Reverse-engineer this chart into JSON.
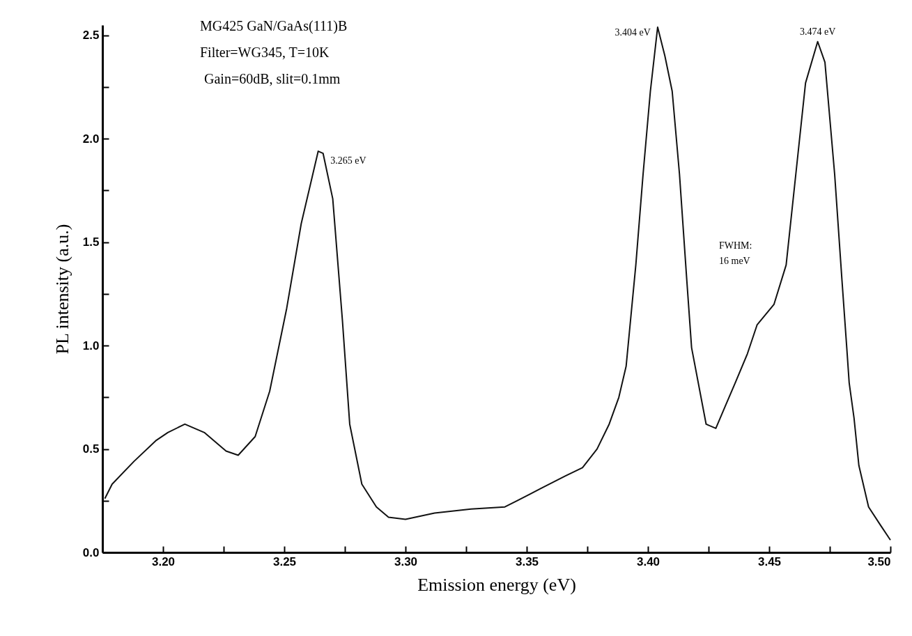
{
  "chart_data": {
    "type": "line",
    "xlabel": "Emission energy (eV)",
    "ylabel": "PL intensity (a.u.)",
    "xlim": [
      3.175,
      3.5
    ],
    "ylim": [
      0,
      2.55
    ],
    "xticks": [
      {
        "value": 3.2,
        "label": "3.20"
      },
      {
        "value": 3.225,
        "label": null
      },
      {
        "value": 3.25,
        "label": "3.25"
      },
      {
        "value": 3.275,
        "label": null
      },
      {
        "value": 3.3,
        "label": "3.30"
      },
      {
        "value": 3.325,
        "label": null
      },
      {
        "value": 3.35,
        "label": "3.35"
      },
      {
        "value": 3.375,
        "label": null
      },
      {
        "value": 3.4,
        "label": "3.40"
      },
      {
        "value": 3.425,
        "label": null
      },
      {
        "value": 3.45,
        "label": "3.45"
      },
      {
        "value": 3.475,
        "label": null
      },
      {
        "value": 3.5,
        "label": "3.50"
      }
    ],
    "yticks": [
      {
        "value": 0,
        "label": "0.0"
      },
      {
        "value": 0.25,
        "label": null
      },
      {
        "value": 0.5,
        "label": "0.5"
      },
      {
        "value": 0.75,
        "label": null
      },
      {
        "value": 1,
        "label": "1.0"
      },
      {
        "value": 1.25,
        "label": null
      },
      {
        "value": 1.5,
        "label": "1.5"
      },
      {
        "value": 1.75,
        "label": null
      },
      {
        "value": 2,
        "label": "2.0"
      },
      {
        "value": 2.25,
        "label": null
      },
      {
        "value": 2.5,
        "label": "2.5"
      }
    ],
    "grid": false,
    "marker": "none",
    "line_style": "solid",
    "series": [
      {
        "color": "#111111",
        "x": [
          3.176,
          3.179,
          3.188,
          3.197,
          3.202,
          3.209,
          3.217,
          3.226,
          3.231,
          3.238,
          3.244,
          3.251,
          3.257,
          3.264,
          3.266,
          3.27,
          3.274,
          3.277,
          3.282,
          3.288,
          3.293,
          3.3,
          3.312,
          3.327,
          3.341,
          3.346,
          3.356,
          3.366,
          3.373,
          3.379,
          3.384,
          3.388,
          3.391,
          3.395,
          3.398,
          3.401,
          3.404,
          3.407,
          3.41,
          3.413,
          3.416,
          3.418,
          3.424,
          3.428,
          3.432,
          3.436,
          3.441,
          3.445,
          3.452,
          3.457,
          3.461,
          3.465,
          3.47,
          3.473,
          3.477,
          3.48,
          3.482,
          3.483,
          3.485,
          3.487,
          3.491,
          3.496,
          3.5
        ],
        "values": [
          0.26,
          0.33,
          0.44,
          0.54,
          0.58,
          0.62,
          0.58,
          0.49,
          0.47,
          0.56,
          0.78,
          1.18,
          1.59,
          1.94,
          1.93,
          1.71,
          1.12,
          0.62,
          0.33,
          0.22,
          0.17,
          0.16,
          0.19,
          0.21,
          0.22,
          0.25,
          0.31,
          0.37,
          0.41,
          0.5,
          0.62,
          0.75,
          0.9,
          1.39,
          1.83,
          2.23,
          2.54,
          2.4,
          2.23,
          1.83,
          1.32,
          0.99,
          0.62,
          0.6,
          0.71,
          0.82,
          0.96,
          1.1,
          1.2,
          1.39,
          1.83,
          2.27,
          2.47,
          2.37,
          1.83,
          1.32,
          0.99,
          0.82,
          0.65,
          0.42,
          0.22,
          0.13,
          0.06
        ]
      }
    ],
    "annotations": [
      "MG425 GaN/GaAs(111)B",
      "Filter=WG345, T=10K",
      "Gain=60dB, slit=0.1mm",
      {
        "text": "3.265 eV",
        "x": 3.265,
        "y": 1.94
      },
      {
        "text": "3.404 eV",
        "x": 3.404,
        "y": 2.54
      },
      {
        "text": "3.474 eV",
        "x": 3.47,
        "y": 2.47
      },
      "FWHM:",
      "16 meV"
    ]
  }
}
